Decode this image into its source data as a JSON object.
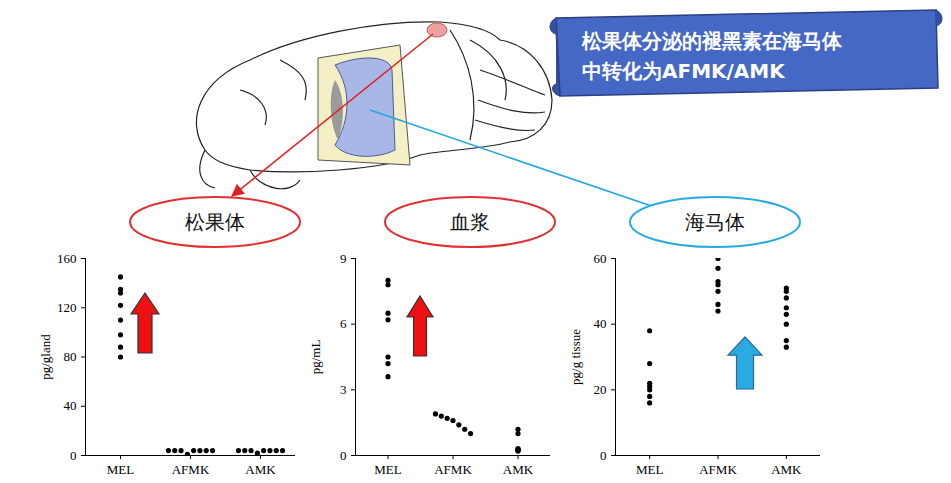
{
  "banner": [
    "松果体分泌的褪黑素在海马体",
    "中转化为AFMK/AMK"
  ],
  "chart_data": [
    {
      "type": "scatter",
      "title": "松果体",
      "ylabel": "pg/gland",
      "categories": [
        "MEL",
        "AFMK",
        "AMK"
      ],
      "points": [
        [
          145,
          135,
          132,
          122,
          110,
          98,
          88,
          80
        ],
        [
          4,
          4,
          4,
          1,
          4,
          4,
          4,
          4
        ],
        [
          4,
          4,
          4,
          2,
          4,
          4,
          4,
          4
        ]
      ],
      "color": "#000000",
      "marker": "circle",
      "ylim": [
        0,
        160
      ],
      "yticks": [
        0,
        40,
        80,
        120,
        160
      ]
    },
    {
      "type": "scatter",
      "title": "血浆",
      "ylabel": "pg/mL",
      "categories": [
        "MEL",
        "AFMK",
        "AMK"
      ],
      "points": [
        [
          8.0,
          7.8,
          6.5,
          6.2,
          4.5,
          4.2,
          3.6
        ],
        [
          1.9,
          1.8,
          1.7,
          1.6,
          1.4,
          1.2,
          1.0
        ],
        [
          1.2,
          1.0,
          0.3,
          0.3,
          0.25,
          0.25,
          0.2
        ]
      ],
      "color": "#000000",
      "marker": "circle",
      "ylim": [
        0,
        9
      ],
      "yticks": [
        0,
        3,
        6,
        9
      ]
    },
    {
      "type": "scatter",
      "title": "海马体",
      "ylabel": "pg/g tissue",
      "categories": [
        "MEL",
        "AFMK",
        "AMK"
      ],
      "points": [
        [
          38,
          28,
          22,
          21,
          20,
          18,
          16
        ],
        [
          60,
          57,
          53,
          52,
          50,
          46,
          44
        ],
        [
          51,
          50,
          48,
          45,
          43,
          40,
          35,
          33
        ]
      ],
      "color": "#000000",
      "marker": "circle",
      "ylim": [
        0,
        60
      ],
      "yticks": [
        0,
        20,
        40,
        60
      ]
    }
  ]
}
